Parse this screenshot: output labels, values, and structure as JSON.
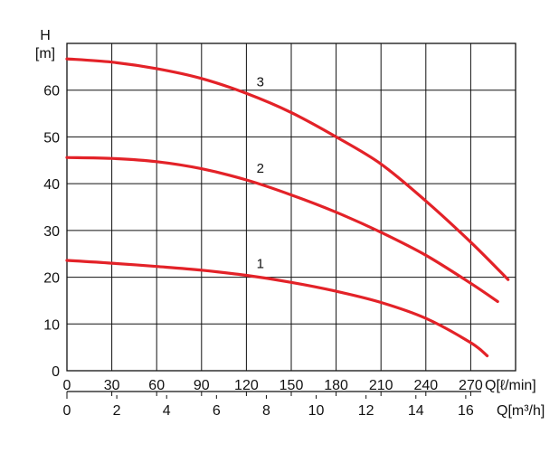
{
  "chart_data": {
    "type": "line",
    "y_axis": {
      "label_top": "H",
      "label_unit": "[m]",
      "ticks": [
        0,
        10,
        20,
        30,
        40,
        50,
        60
      ],
      "range": [
        0,
        70
      ]
    },
    "x_axis_primary": {
      "label": "Q[ℓ/min]",
      "ticks": [
        0,
        30,
        60,
        90,
        120,
        150,
        180,
        210,
        240,
        270
      ],
      "range": [
        0,
        300
      ]
    },
    "x_axis_secondary": {
      "label": "Q[m³/h]",
      "ticks": [
        0,
        2,
        4,
        6,
        8,
        10,
        12,
        14,
        16
      ],
      "range": [
        0,
        18
      ]
    },
    "grid": true,
    "series": [
      {
        "name": "1",
        "color": "#e32228",
        "points": [
          [
            0,
            23.6
          ],
          [
            30,
            23.0
          ],
          [
            60,
            22.3
          ],
          [
            90,
            21.5
          ],
          [
            120,
            20.4
          ],
          [
            150,
            18.9
          ],
          [
            180,
            17.0
          ],
          [
            210,
            14.6
          ],
          [
            240,
            11.2
          ],
          [
            270,
            6.0
          ],
          [
            281,
            3.2
          ]
        ]
      },
      {
        "name": "2",
        "color": "#e32228",
        "points": [
          [
            0,
            45.6
          ],
          [
            30,
            45.4
          ],
          [
            60,
            44.7
          ],
          [
            90,
            43.2
          ],
          [
            120,
            40.8
          ],
          [
            150,
            37.6
          ],
          [
            180,
            33.9
          ],
          [
            210,
            29.6
          ],
          [
            240,
            24.7
          ],
          [
            270,
            18.7
          ],
          [
            288,
            14.8
          ]
        ]
      },
      {
        "name": "3",
        "color": "#e32228",
        "points": [
          [
            0,
            66.7
          ],
          [
            30,
            66.0
          ],
          [
            60,
            64.6
          ],
          [
            90,
            62.5
          ],
          [
            120,
            59.3
          ],
          [
            150,
            55.2
          ],
          [
            180,
            50.0
          ],
          [
            210,
            44.2
          ],
          [
            240,
            36.3
          ],
          [
            270,
            27.5
          ],
          [
            295,
            19.5
          ]
        ]
      }
    ]
  }
}
